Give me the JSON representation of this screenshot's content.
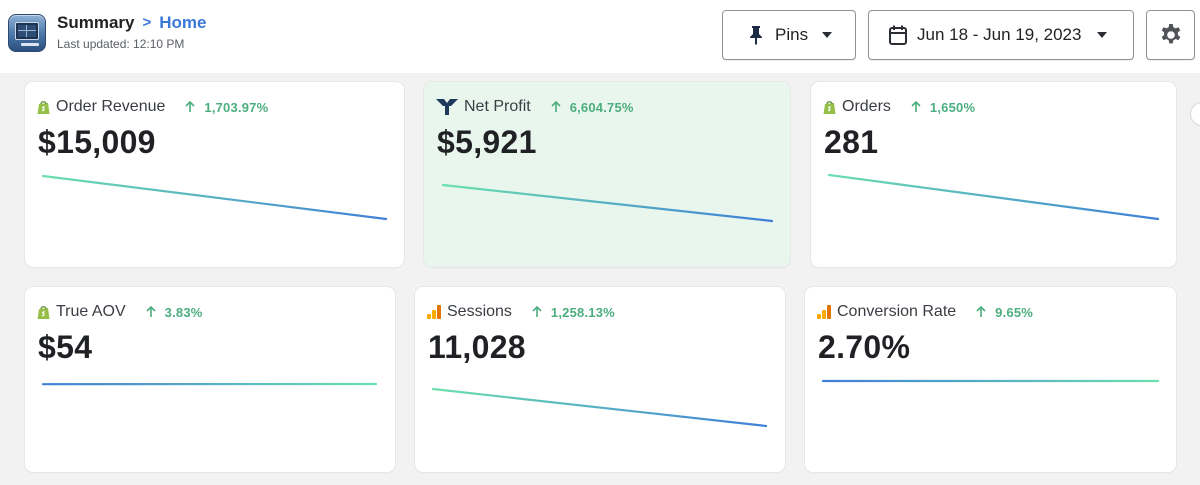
{
  "header": {
    "breadcrumb_root": "Summary",
    "breadcrumb_separator": ">",
    "breadcrumb_current": "Home",
    "last_updated": "Last updated: 12:10 PM",
    "pins_label": "Pins",
    "date_range": "Jun 18 - Jun 19, 2023"
  },
  "colors": {
    "accent": "#3b78d8",
    "positive": "#4cae7e",
    "spark_start": "#6ddfae",
    "spark_end": "#3f7fd8",
    "highlight_bg": "#e9f6ee"
  },
  "cards": [
    {
      "title": "Order Revenue",
      "delta": "1,703.97%",
      "value": "$15,009",
      "source_icon": "shopify-icon",
      "trend": [
        1,
        0
      ]
    },
    {
      "title": "Net Profit",
      "delta": "6,604.75%",
      "value": "$5,921",
      "source_icon": "triple-whale-icon",
      "trend": [
        1,
        0
      ]
    },
    {
      "title": "Orders",
      "delta": "1,650%",
      "value": "281",
      "source_icon": "shopify-icon",
      "trend": [
        1,
        0
      ]
    },
    {
      "title": "True AOV",
      "delta": "3.83%",
      "value": "$54",
      "source_icon": "shopify-icon",
      "trend": [
        0.94,
        1
      ]
    },
    {
      "title": "Sessions",
      "delta": "1,258.13%",
      "value": "11,028",
      "source_icon": "google-analytics-icon",
      "trend": [
        1,
        0
      ]
    },
    {
      "title": "Conversion Rate",
      "delta": "9.65%",
      "value": "2.70%",
      "source_icon": "google-analytics-icon",
      "trend": [
        0.98,
        1
      ]
    }
  ]
}
